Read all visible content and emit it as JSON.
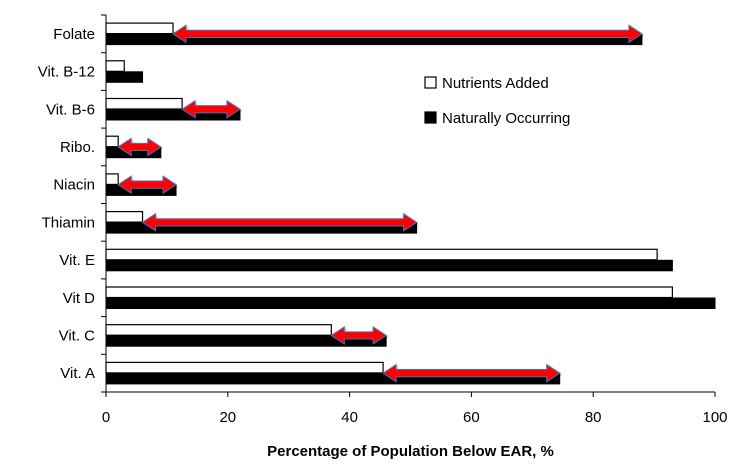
{
  "chart_data": {
    "type": "bar",
    "orientation": "horizontal",
    "categories": [
      "Folate",
      "Vit. B-12",
      "Vit. B-6",
      "Ribo.",
      "Niacin",
      "Thiamin",
      "Vit. E",
      "Vit D",
      "Vit. C",
      "Vit. A"
    ],
    "series": [
      {
        "name": "Nutrients Added",
        "color": "#ffffff",
        "values": [
          11,
          3,
          12.5,
          2,
          2,
          6,
          90.5,
          93,
          37,
          45.5
        ]
      },
      {
        "name": "Naturally Occurring",
        "color": "#000000",
        "values": [
          88,
          6,
          22,
          9,
          11.5,
          51,
          93,
          100,
          46,
          74.5
        ]
      }
    ],
    "arrows": {
      "color": "#ff0000",
      "values": [
        [
          11,
          88
        ],
        null,
        [
          12.5,
          22
        ],
        [
          2,
          9
        ],
        [
          2,
          11.5
        ],
        [
          6,
          51
        ],
        null,
        null,
        [
          37,
          46
        ],
        [
          45.5,
          74.5
        ]
      ]
    },
    "xlabel": "Percentage of Population  Below EAR, %",
    "ylabel": "",
    "xlim": [
      0,
      100
    ],
    "xticks": [
      0,
      20,
      40,
      60,
      80,
      100
    ],
    "grid": false,
    "legend_position": "upper-right"
  }
}
